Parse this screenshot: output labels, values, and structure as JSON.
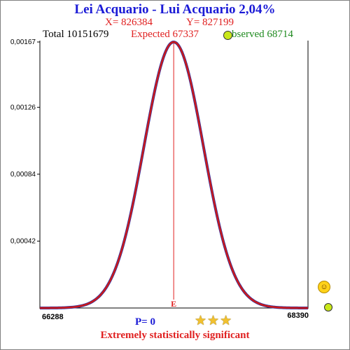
{
  "chart_data": {
    "type": "line",
    "title": "Lei Acquario - Lui Acquario  2,04%",
    "x_label": "X= 826384",
    "y_label": "Y= 827199",
    "total_label": "Total  10151679",
    "expected_label": "Expected  67337",
    "observed_label": "bserved  68714",
    "expected": 67337,
    "observed": 68714,
    "x_min_label": "66288",
    "x_max_label": "68390",
    "xlim": [
      66288,
      68390
    ],
    "ylim": [
      0,
      0.00167
    ],
    "y_ticks": [
      {
        "value": 0.00167,
        "label": "0,00167"
      },
      {
        "value": 0.00126,
        "label": "0,00126"
      },
      {
        "value": 0.00084,
        "label": "0,00084"
      },
      {
        "value": 0.00042,
        "label": "0,00042"
      }
    ],
    "series": [
      {
        "color": "#cc1a1a",
        "x_start": 66288,
        "x_end": 68390,
        "mean": 67337,
        "peak": 0.00167
      }
    ],
    "expected_marker_label": "E",
    "p_label": "P= 0",
    "significance_label": "Extremely statistically significant",
    "stars": 3
  }
}
